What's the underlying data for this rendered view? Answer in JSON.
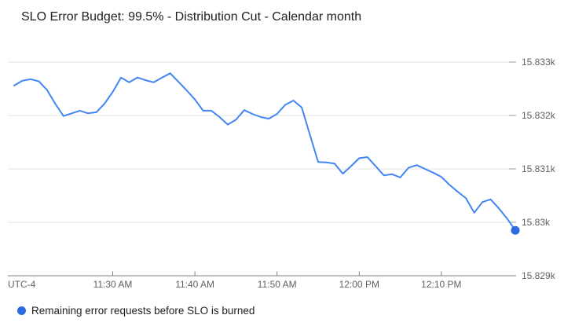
{
  "colors": {
    "background": "#ffffff",
    "gridline": "#e6e6e6",
    "axis_line": "#7f7f7f",
    "y_tick": "#9e9e9e",
    "tick_label": "#616161",
    "title_text": "#212121",
    "legend_text": "#212121"
  },
  "chart_data": {
    "type": "line",
    "title": "SLO Error Budget: 99.5% - Distribution Cut - Calendar month",
    "xlabel": "",
    "ylabel": "",
    "timezone_label": "UTC-4",
    "ylim": [
      15829,
      15833
    ],
    "grid": true,
    "legend_position": "bottom-left",
    "y_ticks": [
      {
        "value": 15833,
        "label": "15.833k"
      },
      {
        "value": 15832,
        "label": "15.832k"
      },
      {
        "value": 15831,
        "label": "15.831k"
      },
      {
        "value": 15830,
        "label": "15.83k"
      },
      {
        "value": 15829,
        "label": "15.829k"
      }
    ],
    "x_ticks": [
      {
        "t": "11:30 AM",
        "label": "11:30 AM"
      },
      {
        "t": "11:40 AM",
        "label": "11:40 AM"
      },
      {
        "t": "11:50 AM",
        "label": "11:50 AM"
      },
      {
        "t": "12:00 PM",
        "label": "12:00 PM"
      },
      {
        "t": "12:10 PM",
        "label": "12:10 PM"
      }
    ],
    "series": [
      {
        "name": "Remaining error requests before SLO is burned",
        "line_color": "#4285f4",
        "marker_color": "#2d6ce0",
        "points": [
          {
            "t": "11:18 AM",
            "v": 15832.56
          },
          {
            "t": "11:19 AM",
            "v": 15832.65
          },
          {
            "t": "11:20 AM",
            "v": 15832.68
          },
          {
            "t": "11:21 AM",
            "v": 15832.64
          },
          {
            "t": "11:22 AM",
            "v": 15832.48
          },
          {
            "t": "11:23 AM",
            "v": 15832.22
          },
          {
            "t": "11:24 AM",
            "v": 15831.99
          },
          {
            "t": "11:25 AM",
            "v": 15832.04
          },
          {
            "t": "11:26 AM",
            "v": 15832.09
          },
          {
            "t": "11:27 AM",
            "v": 15832.04
          },
          {
            "t": "11:28 AM",
            "v": 15832.06
          },
          {
            "t": "11:29 AM",
            "v": 15832.22
          },
          {
            "t": "11:30 AM",
            "v": 15832.44
          },
          {
            "t": "11:31 AM",
            "v": 15832.71
          },
          {
            "t": "11:32 AM",
            "v": 15832.62
          },
          {
            "t": "11:33 AM",
            "v": 15832.71
          },
          {
            "t": "11:34 AM",
            "v": 15832.66
          },
          {
            "t": "11:35 AM",
            "v": 15832.62
          },
          {
            "t": "11:36 AM",
            "v": 15832.71
          },
          {
            "t": "11:37 AM",
            "v": 15832.79
          },
          {
            "t": "11:38 AM",
            "v": 15832.63
          },
          {
            "t": "11:39 AM",
            "v": 15832.47
          },
          {
            "t": "11:40 AM",
            "v": 15832.3
          },
          {
            "t": "11:41 AM",
            "v": 15832.09
          },
          {
            "t": "11:42 AM",
            "v": 15832.09
          },
          {
            "t": "11:43 AM",
            "v": 15831.97
          },
          {
            "t": "11:44 AM",
            "v": 15831.83
          },
          {
            "t": "11:45 AM",
            "v": 15831.92
          },
          {
            "t": "11:46 AM",
            "v": 15832.1
          },
          {
            "t": "11:47 AM",
            "v": 15832.03
          },
          {
            "t": "11:48 AM",
            "v": 15831.97
          },
          {
            "t": "11:49 AM",
            "v": 15831.94
          },
          {
            "t": "11:50 AM",
            "v": 15832.03
          },
          {
            "t": "11:51 AM",
            "v": 15832.2
          },
          {
            "t": "11:52 AM",
            "v": 15832.28
          },
          {
            "t": "11:53 AM",
            "v": 15832.15
          },
          {
            "t": "11:54 AM",
            "v": 15831.64
          },
          {
            "t": "11:55 AM",
            "v": 15831.13
          },
          {
            "t": "11:56 AM",
            "v": 15831.12
          },
          {
            "t": "11:57 AM",
            "v": 15831.1
          },
          {
            "t": "11:58 AM",
            "v": 15830.91
          },
          {
            "t": "11:59 AM",
            "v": 15831.05
          },
          {
            "t": "12:00 PM",
            "v": 15831.2
          },
          {
            "t": "12:01 PM",
            "v": 15831.22
          },
          {
            "t": "12:02 PM",
            "v": 15831.05
          },
          {
            "t": "12:03 PM",
            "v": 15830.88
          },
          {
            "t": "12:04 PM",
            "v": 15830.9
          },
          {
            "t": "12:05 PM",
            "v": 15830.84
          },
          {
            "t": "12:06 PM",
            "v": 15831.02
          },
          {
            "t": "12:07 PM",
            "v": 15831.07
          },
          {
            "t": "12:08 PM",
            "v": 15831.0
          },
          {
            "t": "12:09 PM",
            "v": 15830.93
          },
          {
            "t": "12:10 PM",
            "v": 15830.85
          },
          {
            "t": "12:11 PM",
            "v": 15830.7
          },
          {
            "t": "12:12 PM",
            "v": 15830.57
          },
          {
            "t": "12:13 PM",
            "v": 15830.45
          },
          {
            "t": "12:14 PM",
            "v": 15830.18
          },
          {
            "t": "12:15 PM",
            "v": 15830.38
          },
          {
            "t": "12:16 PM",
            "v": 15830.43
          },
          {
            "t": "12:17 PM",
            "v": 15830.26
          },
          {
            "t": "12:18 PM",
            "v": 15830.07
          },
          {
            "t": "12:19 PM",
            "v": 15829.85
          }
        ]
      }
    ]
  }
}
